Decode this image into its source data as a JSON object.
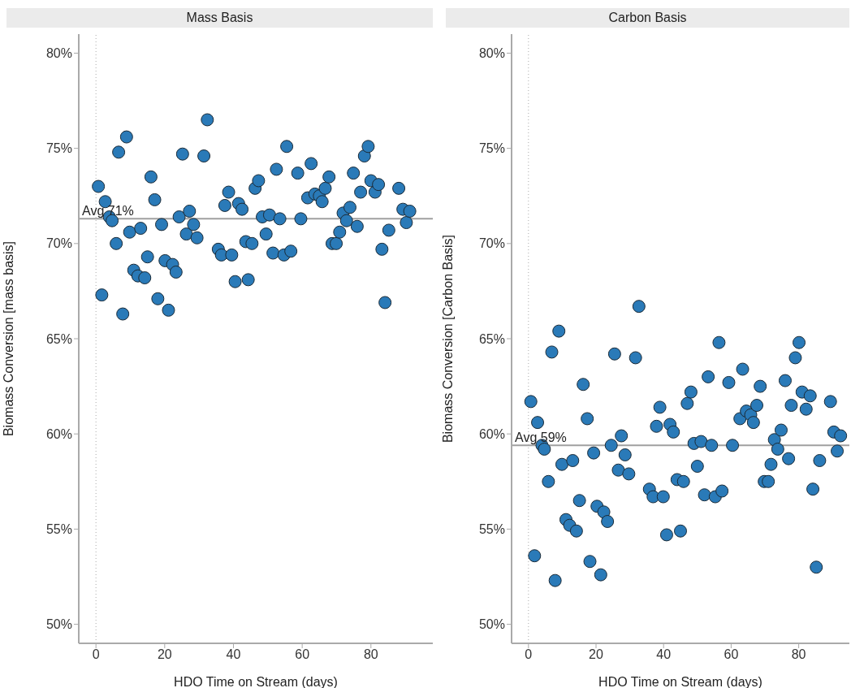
{
  "chart_data": [
    {
      "type": "scatter",
      "title": "Mass Basis",
      "xlabel": "HDO Time on Stream (days)",
      "ylabel": "Biomass Conversion [mass basis]",
      "marker": "circle",
      "x": [
        0.7,
        1.7,
        2.7,
        3.9,
        4.7,
        5.9,
        6.6,
        7.8,
        8.9,
        9.8,
        11,
        12.2,
        13,
        14.2,
        15,
        16,
        17.1,
        18,
        19.1,
        20.1,
        21.1,
        22.3,
        23.3,
        24.2,
        25.2,
        26.3,
        27.2,
        28.4,
        29.4,
        31.4,
        32.4,
        35.6,
        36.5,
        37.5,
        38.6,
        39.5,
        40.5,
        41.5,
        42.5,
        43.6,
        44.3,
        45.4,
        46.3,
        47.3,
        48.4,
        49.5,
        50.5,
        51.5,
        52.5,
        53.5,
        54.7,
        55.5,
        56.7,
        58.7,
        59.6,
        61.6,
        62.6,
        63.7,
        65,
        65.8,
        66.7,
        67.8,
        68.7,
        69.9,
        70.9,
        71.9,
        72.9,
        73.9,
        74.9,
        76,
        77,
        78.1,
        79.2,
        80,
        81.2,
        82.2,
        83.2,
        84.1,
        85.2,
        88.1,
        89.3,
        90.3,
        91.3
      ],
      "series": [
        {
          "color": "#2a7ab8",
          "values": [
            73.0,
            67.3,
            72.2,
            71.4,
            71.2,
            70.0,
            74.8,
            66.3,
            75.6,
            70.6,
            68.6,
            68.3,
            70.8,
            68.2,
            69.3,
            73.5,
            72.3,
            67.1,
            71.0,
            69.1,
            66.5,
            68.9,
            68.5,
            71.4,
            74.7,
            70.5,
            71.7,
            71.0,
            70.3,
            74.6,
            76.5,
            69.7,
            69.4,
            72.0,
            72.7,
            69.4,
            68.0,
            72.1,
            71.8,
            70.1,
            68.1,
            70.0,
            72.9,
            73.3,
            71.4,
            70.5,
            71.5,
            69.5,
            73.9,
            71.3,
            69.4,
            75.1,
            69.6,
            73.7,
            71.3,
            72.4,
            74.2,
            72.6,
            72.5,
            72.2,
            72.9,
            73.5,
            70.0,
            70.0,
            70.6,
            71.6,
            71.2,
            71.9,
            73.7,
            70.9,
            72.7,
            74.6,
            75.1,
            73.3,
            72.7,
            73.1,
            69.7,
            66.9,
            70.7,
            72.9,
            71.8,
            71.1,
            71.7
          ]
        }
      ],
      "xlim": [
        -5,
        98
      ],
      "xticks": [
        0,
        20,
        40,
        60,
        80
      ],
      "ylim": [
        49,
        81
      ],
      "yticks": [
        {
          "value": 50,
          "label": "50%"
        },
        {
          "value": 55,
          "label": "55%"
        },
        {
          "value": 60,
          "label": "60%"
        },
        {
          "value": 65,
          "label": "65%"
        },
        {
          "value": 70,
          "label": "70%"
        },
        {
          "value": 75,
          "label": "75%"
        },
        {
          "value": 80,
          "label": "80%"
        }
      ],
      "ref_lines": [
        {
          "axis": "x",
          "value": 0,
          "line_style": "dotted",
          "color": "#aaaaaa"
        },
        {
          "axis": "y",
          "value": 71.3,
          "label": "Avg 71%",
          "color": "#a0a0a0",
          "line_style": "solid"
        }
      ]
    },
    {
      "type": "scatter",
      "title": "Carbon Basis",
      "xlabel": "HDO Time on Stream (days)",
      "ylabel": "Biomass Conversion [Carbon Basis]",
      "marker": "circle",
      "x": [
        0.7,
        1.8,
        2.7,
        4,
        4.7,
        5.9,
        6.9,
        7.9,
        9,
        9.9,
        11.1,
        12.2,
        13.1,
        14.2,
        15.1,
        16.2,
        17.4,
        18.2,
        19.3,
        20.3,
        21.4,
        22.3,
        23.4,
        24.5,
        25.5,
        26.6,
        27.5,
        28.6,
        29.7,
        31.7,
        32.7,
        35.8,
        36.9,
        37.9,
        38.9,
        39.9,
        40.9,
        41.9,
        42.9,
        44,
        45,
        45.9,
        47,
        48.1,
        49,
        50,
        51.1,
        52.1,
        53.2,
        54.2,
        55.3,
        56.4,
        57.3,
        59.3,
        60.4,
        62.6,
        63.4,
        64.5,
        65.8,
        66.6,
        67.6,
        68.6,
        69.8,
        71,
        71.8,
        72.8,
        73.8,
        74.8,
        76,
        77,
        77.8,
        79,
        80.1,
        81,
        82.2,
        83.4,
        84.2,
        85.2,
        86.2,
        89.4,
        90.4,
        91.4,
        92.4
      ],
      "series": [
        {
          "color": "#2a7ab8",
          "values": [
            61.7,
            53.6,
            60.6,
            59.4,
            59.2,
            57.5,
            64.3,
            52.3,
            65.4,
            58.4,
            55.5,
            55.2,
            58.6,
            54.9,
            56.5,
            62.6,
            60.8,
            53.3,
            59.0,
            56.2,
            52.6,
            55.9,
            55.4,
            59.4,
            64.2,
            58.1,
            59.9,
            58.9,
            57.9,
            64.0,
            66.7,
            57.1,
            56.7,
            60.4,
            61.4,
            56.7,
            54.7,
            60.5,
            60.1,
            57.6,
            54.9,
            57.5,
            61.6,
            62.2,
            59.5,
            58.3,
            59.6,
            56.8,
            63.0,
            59.4,
            56.7,
            64.8,
            57.0,
            62.7,
            59.4,
            60.8,
            63.4,
            61.2,
            61.0,
            60.6,
            61.5,
            62.5,
            57.5,
            57.5,
            58.4,
            59.7,
            59.2,
            60.2,
            62.8,
            58.7,
            61.5,
            64.0,
            64.8,
            62.2,
            61.3,
            62.0,
            57.1,
            53.0,
            58.6,
            61.7,
            60.1,
            59.1,
            59.9
          ]
        }
      ],
      "xlim": [
        -5,
        95
      ],
      "xticks": [
        0,
        20,
        40,
        60,
        80
      ],
      "ylim": [
        49,
        81
      ],
      "yticks": [
        {
          "value": 50,
          "label": "50%"
        },
        {
          "value": 55,
          "label": "55%"
        },
        {
          "value": 60,
          "label": "60%"
        },
        {
          "value": 65,
          "label": "65%"
        },
        {
          "value": 70,
          "label": "70%"
        },
        {
          "value": 75,
          "label": "75%"
        },
        {
          "value": 80,
          "label": "80%"
        }
      ],
      "ref_lines": [
        {
          "axis": "x",
          "value": 0,
          "line_style": "dotted",
          "color": "#aaaaaa"
        },
        {
          "axis": "y",
          "value": 59.4,
          "label": "Avg 59%",
          "color": "#a0a0a0",
          "line_style": "solid"
        }
      ]
    }
  ]
}
